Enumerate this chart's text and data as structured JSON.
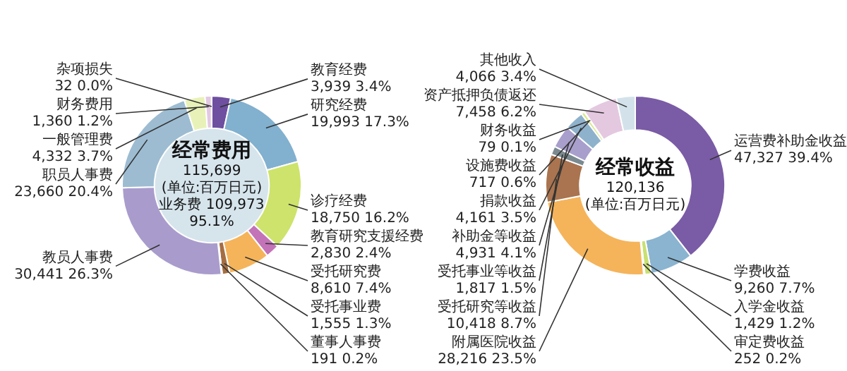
{
  "chart_data": [
    {
      "type": "donut",
      "title": "经常费用",
      "annotations": [
        "115,699",
        "(单位:百万日元)",
        "业务费 109,973",
        "95.1%"
      ],
      "categories": [
        "教育经费",
        "研究经费",
        "诊疗经费",
        "教育研究支援经费",
        "受托研究费",
        "受托事业费",
        "董事人事费",
        "教员人事费",
        "职员人事费",
        "一般管理费",
        "财务费用",
        "杂项损失"
      ],
      "values": [
        3939,
        19993,
        18750,
        2830,
        8610,
        1555,
        191,
        30441,
        23660,
        4332,
        1360,
        32
      ],
      "value_labels": [
        "3,939 3.4%",
        "19,993 17.3%",
        "18,750 16.2%",
        "2,830 2.4%",
        "8,610 7.4%",
        "1,555 1.3%",
        "191 0.2%",
        "30,441 26.3%",
        "23,660 20.4%",
        "4,332 3.7%",
        "1,360 1.2%",
        "32 0.0%"
      ],
      "colors": [
        "#6e4fa0",
        "#82b0cf",
        "#cde36b",
        "#c373b7",
        "#f5b45a",
        "#a56e42",
        "#c9a27c",
        "#a99ccc",
        "#9dbcd2",
        "#e8f2b8",
        "#e2c8e2",
        "#f4e6f2"
      ]
    },
    {
      "type": "donut",
      "title": "经常收益",
      "annotations": [
        "120,136",
        "(单位:百万日元)"
      ],
      "categories": [
        "运营费补助金收益",
        "学费收益",
        "入学金收益",
        "审定费收益",
        "附属医院收益",
        "受托研究等收益",
        "受托事业等收益",
        "补助金等收益",
        "捐款收益",
        "设施费收益",
        "财务收益",
        "资产抵押负债返还",
        "其他收入"
      ],
      "values": [
        47327,
        9260,
        1429,
        252,
        28216,
        10418,
        1817,
        4931,
        4161,
        717,
        79,
        7458,
        4066
      ],
      "value_labels": [
        "47,327 39.4%",
        "9,260 7.7%",
        "1,429 1.2%",
        "252 0.2%",
        "28,216 23.5%",
        "10,418 8.7%",
        "1,817 1.5%",
        "4,931 4.1%",
        "4,161 3.5%",
        "717 0.6%",
        "79 0.1%",
        "7,458 6.2%",
        "4,066 3.4%"
      ],
      "colors": [
        "#7a5ba5",
        "#8ab4d0",
        "#c8e070",
        "#f0c8e0",
        "#f5b45a",
        "#a9744f",
        "#7a8a90",
        "#a99fcc",
        "#8fb2cc",
        "#d8e88a",
        "#e8e070",
        "#e4c8e0",
        "#d3e2ea"
      ]
    }
  ]
}
